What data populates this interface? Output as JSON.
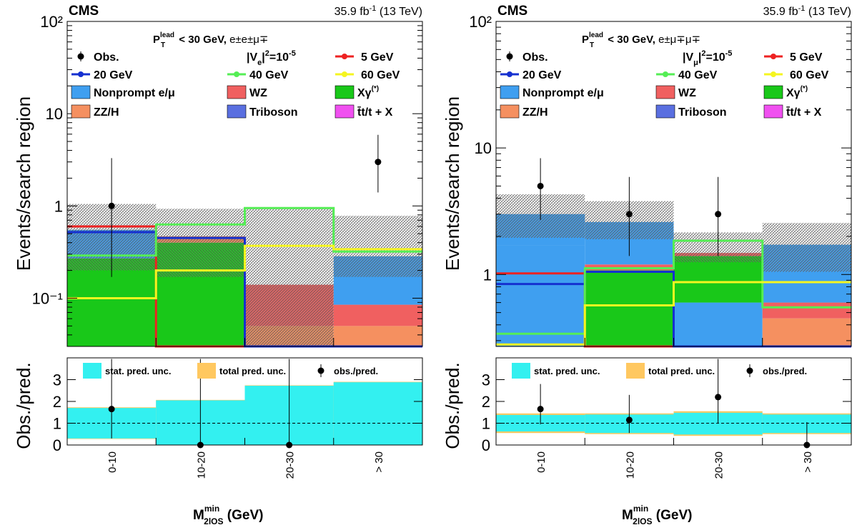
{
  "colors": {
    "nonprompt": "#3f9ff0",
    "wz": "#f06060",
    "xgamma": "#19c819",
    "zzh": "#f59060",
    "triboson": "#5a6fe0",
    "ttx": "#f050f0",
    "sig5": "#ee2222",
    "sig20": "#1530d0",
    "sig40": "#55ee55",
    "sig60": "#f5f520",
    "stat_unc": "#33f0f0",
    "total_unc": "#ffc860"
  },
  "panels": [
    {
      "header": {
        "experiment": "CMS",
        "lumi": "35.9 fb",
        "lumi_sup": "-1",
        "energy": " (13 TeV)"
      },
      "selection": {
        "pt_main": "P",
        "pt_sup": "lead",
        "pt_sub": "T",
        "cut": " < 30 GeV, ",
        "channel": "e±e±μ∓"
      },
      "coupling": {
        "text": "|V",
        "sub": "e",
        "text2": "|",
        "sup": "2",
        "value": "=10",
        "value_sup": "-5"
      },
      "legend": {
        "obs": "Obs.",
        "m5": "5 GeV",
        "m20": "20 GeV",
        "m40": "40 GeV",
        "m60": "60 GeV",
        "nonprompt": "Nonprompt e/μ",
        "wz": "WZ",
        "xgamma": "Xγ",
        "xgamma_sup": "(*)",
        "zzh": "ZZ/H",
        "triboson": "Triboson",
        "ttx": "t̄t/t + X"
      },
      "ytitle": "Events/search region",
      "ratio_title": "Obs./pred.",
      "ratio_legend": {
        "stat": "stat. pred. unc.",
        "total": "total pred. unc.",
        "obs": "obs./pred."
      },
      "xtitle": "M",
      "xtitle_sup": "min",
      "xtitle_sub": "2lOS",
      "xtitle_unit": " (GeV)"
    },
    {
      "header": {
        "experiment": "CMS",
        "lumi": "35.9 fb",
        "lumi_sup": "-1",
        "energy": " (13 TeV)"
      },
      "selection": {
        "pt_main": "P",
        "pt_sup": "lead",
        "pt_sub": "T",
        "cut": " < 30 GeV, ",
        "channel": "e±μ∓μ∓"
      },
      "coupling": {
        "text": "|V",
        "sub": "μ",
        "text2": "|",
        "sup": "2",
        "value": "=10",
        "value_sup": "-5"
      },
      "legend": {
        "obs": "Obs.",
        "m5": "5 GeV",
        "m20": "20 GeV",
        "m40": "40 GeV",
        "m60": "60 GeV",
        "nonprompt": "Nonprompt e/μ",
        "wz": "WZ",
        "xgamma": "Xγ",
        "xgamma_sup": "(*)",
        "zzh": "ZZ/H",
        "triboson": "Triboson",
        "ttx": "t̄t/t + X"
      },
      "ytitle": "Events/search region",
      "ratio_title": "Obs./pred.",
      "ratio_legend": {
        "stat": "stat. pred. unc.",
        "total": "total pred. unc.",
        "obs": "obs./pred."
      },
      "xtitle": "M",
      "xtitle_sup": "min",
      "xtitle_sub": "2lOS",
      "xtitle_unit": " (GeV)"
    }
  ],
  "chart_data": [
    {
      "type": "bar",
      "stacked": true,
      "categories": [
        "0-10",
        "10-20",
        "20-30",
        "> 30"
      ],
      "yscale": "log",
      "ylim": [
        0.03,
        100
      ],
      "ytick_labels": [
        "10⁻¹",
        "1",
        "10",
        "10²"
      ],
      "ylabel": "Events/search region",
      "xlabel": "M2lOS min (GeV)",
      "stack": [
        {
          "name": "Xγ(*)",
          "key": "xgamma",
          "values": [
            0.27,
            0.4,
            0,
            0
          ]
        },
        {
          "name": "ZZ/H",
          "key": "zzh",
          "values": [
            0,
            0.07,
            0.05,
            0.05
          ]
        },
        {
          "name": "WZ",
          "key": "wz",
          "values": [
            0,
            0,
            0.09,
            0.035
          ]
        },
        {
          "name": "Nonprompt e/μ",
          "key": "nonprompt",
          "values": [
            0.28,
            0,
            0,
            0.2
          ]
        }
      ],
      "unc_band": {
        "low": [
          0.2,
          0.17,
          0.03,
          0.17
        ],
        "high": [
          1.05,
          0.93,
          0.93,
          0.78
        ]
      },
      "signals": [
        {
          "name": "5 GeV",
          "key": "sig5",
          "values": [
            0.6,
            0.001,
            0.001,
            0.001
          ]
        },
        {
          "name": "20 GeV",
          "key": "sig20",
          "values": [
            0.52,
            0.45,
            0.001,
            0.001
          ]
        },
        {
          "name": "40 GeV",
          "key": "sig40",
          "values": [
            0.29,
            0.63,
            0.95,
            0.32
          ]
        },
        {
          "name": "60 GeV",
          "key": "sig60",
          "values": [
            0.1,
            0.2,
            0.37,
            0.34
          ]
        }
      ],
      "observed": [
        {
          "bin": 0,
          "y": 1.0,
          "lo": 0.17,
          "hi": 3.3
        },
        {
          "bin": 3,
          "y": 3.0,
          "lo": 1.4,
          "hi": 5.9
        }
      ],
      "ratio": {
        "ylim": [
          0,
          4
        ],
        "yticks": [
          0,
          1,
          2,
          3
        ],
        "stat_band": {
          "low": [
            0.3,
            0.0,
            0.0,
            0.0
          ],
          "high": [
            1.7,
            2.05,
            2.72,
            2.88
          ]
        },
        "total_band": {
          "low": [
            0.28,
            0.0,
            0.0,
            0.0
          ],
          "high": [
            1.73,
            2.07,
            2.74,
            2.9
          ]
        },
        "points": [
          {
            "bin": 0,
            "y": 1.65,
            "lo": 0.3,
            "hi": 3.95
          },
          {
            "bin": 1,
            "y": 0.0,
            "lo": 0.0,
            "hi": 3.95
          },
          {
            "bin": 2,
            "y": 0.0,
            "lo": 0.0,
            "hi": 3.95
          }
        ]
      }
    },
    {
      "type": "bar",
      "stacked": true,
      "categories": [
        "0-10",
        "10-20",
        "20-30",
        "> 30"
      ],
      "yscale": "log",
      "ylim": [
        0.27,
        100
      ],
      "ytick_labels": [
        "1",
        "10",
        "10²"
      ],
      "ylabel": "Events/search region",
      "xlabel": "M2lOS min (GeV)",
      "stack": [
        {
          "name": "Nonprompt e/μ",
          "key": "nonprompt",
          "values": [
            1.7,
            0,
            0.6,
            0
          ]
        },
        {
          "name": "ZZ/H",
          "key": "zzh",
          "values": [
            0,
            0,
            0,
            0.45
          ]
        },
        {
          "name": "WZ",
          "key": "wz",
          "values": [
            0,
            0,
            0,
            0.15
          ]
        },
        {
          "name": "Xγ(*)",
          "key": "xgamma",
          "values": [
            0,
            1.08,
            0.8,
            0
          ]
        },
        {
          "name": "WZ",
          "key": "wz",
          "values": [
            0,
            0.12,
            0.08,
            0
          ]
        },
        {
          "name": "Nonprompt e/μ",
          "key": "nonprompt",
          "values": [
            1.3,
            1.4,
            0,
            1.12
          ]
        }
      ],
      "unc_band": {
        "low": [
          1.95,
          1.9,
          1.25,
          1.05
        ],
        "high": [
          4.3,
          3.8,
          2.15,
          2.55
        ]
      },
      "signals": [
        {
          "name": "5 GeV",
          "key": "sig5",
          "values": [
            1.02,
            0.001,
            0.001,
            0.001
          ]
        },
        {
          "name": "20 GeV",
          "key": "sig20",
          "values": [
            0.84,
            1.05,
            0.001,
            0.001
          ]
        },
        {
          "name": "40 GeV",
          "key": "sig40",
          "values": [
            0.34,
            1.12,
            1.85,
            0.55
          ]
        },
        {
          "name": "60 GeV",
          "key": "sig60",
          "values": [
            0.28,
            0.57,
            0.87,
            0.87
          ]
        }
      ],
      "observed": [
        {
          "bin": 0,
          "y": 5.0,
          "lo": 2.7,
          "hi": 8.3
        },
        {
          "bin": 1,
          "y": 3.0,
          "lo": 1.4,
          "hi": 5.9
        },
        {
          "bin": 2,
          "y": 3.0,
          "lo": 1.4,
          "hi": 5.9
        }
      ],
      "ratio": {
        "ylim": [
          0,
          4
        ],
        "yticks": [
          0,
          1,
          2,
          3
        ],
        "stat_band": {
          "low": [
            0.62,
            0.55,
            0.48,
            0.55
          ],
          "high": [
            1.38,
            1.4,
            1.48,
            1.4
          ]
        },
        "total_band": {
          "low": [
            0.55,
            0.5,
            0.42,
            0.5
          ],
          "high": [
            1.45,
            1.45,
            1.55,
            1.45
          ]
        },
        "points": [
          {
            "bin": 0,
            "y": 1.65,
            "lo": 0.95,
            "hi": 2.8
          },
          {
            "bin": 1,
            "y": 1.15,
            "lo": 0.55,
            "hi": 2.3
          },
          {
            "bin": 2,
            "y": 2.2,
            "lo": 1.0,
            "hi": 3.95
          },
          {
            "bin": 3,
            "y": 0.0,
            "lo": 0.0,
            "hi": 1.05
          }
        ]
      }
    }
  ]
}
